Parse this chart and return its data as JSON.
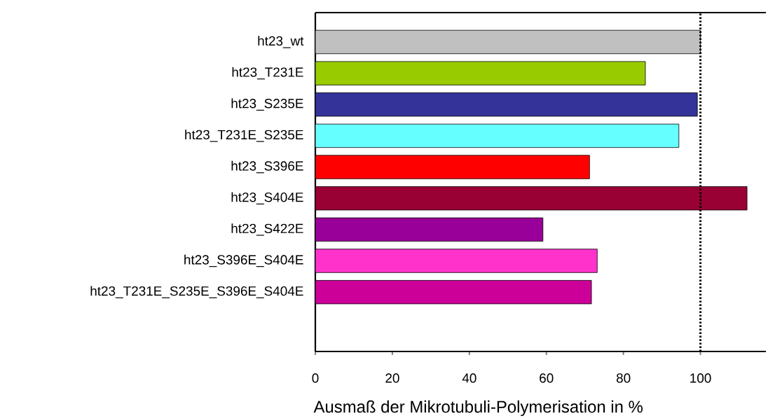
{
  "chart_data": {
    "type": "bar",
    "orientation": "horizontal",
    "xlabel": "Ausmaß der Mikrotubuli-Polymerisation in %",
    "categories": [
      "ht23_wt",
      "ht23_T231E",
      "ht23_S235E",
      "ht23_T231E_S235E",
      "ht23_S396E",
      "ht23_S404E",
      "ht23_S422E",
      "ht23_S396E_S404E",
      "ht23_T231E_S235E_S396E_S404E"
    ],
    "values": [
      100,
      85.7,
      99.2,
      94.4,
      71.2,
      112.1,
      59.1,
      73.2,
      71.7
    ],
    "colors": [
      "#c0c0c0",
      "#99cc00",
      "#333399",
      "#66ffff",
      "#ff0000",
      "#990033",
      "#990099",
      "#ff33cc",
      "#cc0099"
    ],
    "xlim": [
      0,
      117
    ],
    "xticks": [
      0,
      20,
      40,
      60,
      80,
      100
    ],
    "ref_lines": [
      {
        "axis": "x",
        "value": 100,
        "line_style": "dotted"
      }
    ],
    "grid": false
  }
}
